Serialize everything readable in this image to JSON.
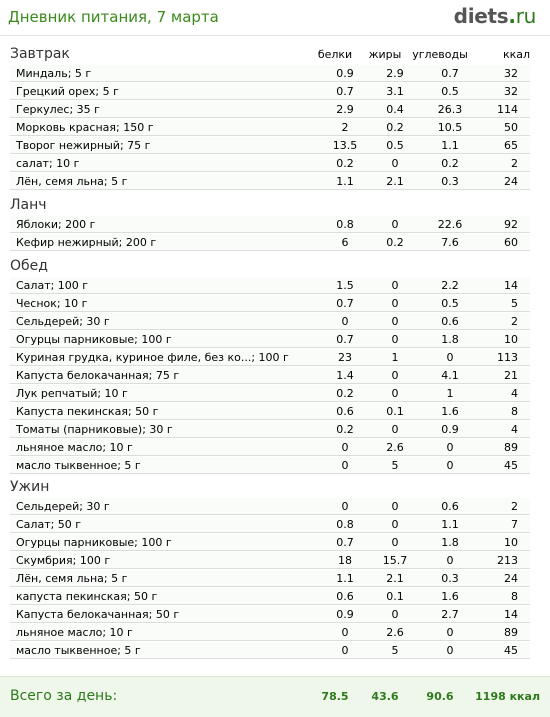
{
  "header": {
    "title": "Дневник питания, 7 марта",
    "logo": {
      "main": "diets",
      "dot": ".",
      "tld": "ru"
    }
  },
  "columns": {
    "protein": "белки",
    "fat": "жиры",
    "carbs": "углеводы",
    "kcal": "ккал"
  },
  "sections": [
    {
      "title": "Завтрак",
      "items": [
        {
          "name": "Миндаль; 5 г",
          "protein": "0.9",
          "fat": "2.9",
          "carbs": "0.7",
          "kcal": "32"
        },
        {
          "name": "Грецкий орех; 5 г",
          "protein": "0.7",
          "fat": "3.1",
          "carbs": "0.5",
          "kcal": "32"
        },
        {
          "name": "Геркулес; 35 г",
          "protein": "2.9",
          "fat": "0.4",
          "carbs": "26.3",
          "kcal": "114"
        },
        {
          "name": "Морковь красная; 150 г",
          "protein": "2",
          "fat": "0.2",
          "carbs": "10.5",
          "kcal": "50"
        },
        {
          "name": "Творог нежирный; 75 г",
          "protein": "13.5",
          "fat": "0.5",
          "carbs": "1.1",
          "kcal": "65"
        },
        {
          "name": "салат; 10 г",
          "protein": "0.2",
          "fat": "0",
          "carbs": "0.2",
          "kcal": "2"
        },
        {
          "name": "Лён, семя льна; 5 г",
          "protein": "1.1",
          "fat": "2.1",
          "carbs": "0.3",
          "kcal": "24"
        }
      ]
    },
    {
      "title": "Ланч",
      "items": [
        {
          "name": "Яблоки; 200 г",
          "protein": "0.8",
          "fat": "0",
          "carbs": "22.6",
          "kcal": "92"
        },
        {
          "name": "Кефир нежирный; 200 г",
          "protein": "6",
          "fat": "0.2",
          "carbs": "7.6",
          "kcal": "60"
        }
      ]
    },
    {
      "title": "Обед",
      "items": [
        {
          "name": "Салат; 100 г",
          "protein": "1.5",
          "fat": "0",
          "carbs": "2.2",
          "kcal": "14"
        },
        {
          "name": "Чеснок; 10 г",
          "protein": "0.7",
          "fat": "0",
          "carbs": "0.5",
          "kcal": "5"
        },
        {
          "name": "Сельдерей; 30 г",
          "protein": "0",
          "fat": "0",
          "carbs": "0.6",
          "kcal": "2"
        },
        {
          "name": "Огурцы парниковые; 100 г",
          "protein": "0.7",
          "fat": "0",
          "carbs": "1.8",
          "kcal": "10"
        },
        {
          "name": "Куриная грудка, куриное филе, без ко...; 100 г",
          "protein": "23",
          "fat": "1",
          "carbs": "0",
          "kcal": "113"
        },
        {
          "name": "Капуста белокачанная; 75 г",
          "protein": "1.4",
          "fat": "0",
          "carbs": "4.1",
          "kcal": "21"
        },
        {
          "name": "Лук репчатый; 10 г",
          "protein": "0.2",
          "fat": "0",
          "carbs": "1",
          "kcal": "4"
        },
        {
          "name": "Капуста пекинская; 50 г",
          "protein": "0.6",
          "fat": "0.1",
          "carbs": "1.6",
          "kcal": "8"
        },
        {
          "name": "Томаты (парниковые); 30 г",
          "protein": "0.2",
          "fat": "0",
          "carbs": "0.9",
          "kcal": "4"
        },
        {
          "name": "льняное масло; 10 г",
          "protein": "0",
          "fat": "2.6",
          "carbs": "0",
          "kcal": "89"
        },
        {
          "name": "масло тыквенное; 5 г",
          "protein": "0",
          "fat": "5",
          "carbs": "0",
          "kcal": "45"
        }
      ]
    },
    {
      "title": "Ужин",
      "items": [
        {
          "name": "Сельдерей; 30 г",
          "protein": "0",
          "fat": "0",
          "carbs": "0.6",
          "kcal": "2"
        },
        {
          "name": "Салат; 50 г",
          "protein": "0.8",
          "fat": "0",
          "carbs": "1.1",
          "kcal": "7"
        },
        {
          "name": "Огурцы парниковые; 100 г",
          "protein": "0.7",
          "fat": "0",
          "carbs": "1.8",
          "kcal": "10"
        },
        {
          "name": "Скумбрия; 100 г",
          "protein": "18",
          "fat": "15.7",
          "carbs": "0",
          "kcal": "213"
        },
        {
          "name": "Лён, семя льна; 5 г",
          "protein": "1.1",
          "fat": "2.1",
          "carbs": "0.3",
          "kcal": "24"
        },
        {
          "name": "капуста пекинская; 50 г",
          "protein": "0.6",
          "fat": "0.1",
          "carbs": "1.6",
          "kcal": "8"
        },
        {
          "name": "Капуста белокачанная; 50 г",
          "protein": "0.9",
          "fat": "0",
          "carbs": "2.7",
          "kcal": "14"
        },
        {
          "name": "льняное масло; 10 г",
          "protein": "0",
          "fat": "2.6",
          "carbs": "0",
          "kcal": "89"
        },
        {
          "name": "масло тыквенное; 5 г",
          "protein": "0",
          "fat": "5",
          "carbs": "0",
          "kcal": "45"
        }
      ]
    }
  ],
  "totals": {
    "label": "Всего за день:",
    "protein": "78.5",
    "fat": "43.6",
    "carbs": "90.6",
    "kcal": "1198 ккал"
  }
}
